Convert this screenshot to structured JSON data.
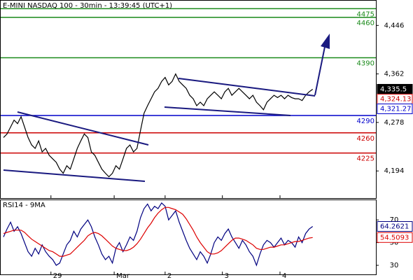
{
  "chart_data": [
    {
      "type": "line",
      "title": "E-MINI NASDAQ 100 - 30min - 13:39:45 (UTC+1)",
      "xlim": [
        0,
        107
      ],
      "x": [
        1,
        2,
        3,
        4,
        5,
        6,
        7,
        8,
        9,
        10,
        11,
        12,
        13,
        14,
        15,
        16,
        17,
        18,
        19,
        20,
        21,
        22,
        23,
        24,
        25,
        26,
        27,
        28,
        29,
        30,
        31,
        32,
        33,
        34,
        35,
        36,
        37,
        38,
        39,
        40,
        41,
        42,
        43,
        44,
        45,
        46,
        47,
        48,
        49,
        50,
        51,
        52,
        53,
        54,
        55,
        56,
        57,
        58,
        59,
        60,
        61,
        62,
        63,
        64,
        65,
        66,
        67,
        68,
        69,
        70,
        71,
        72,
        73,
        74,
        75,
        76,
        77,
        78,
        79,
        80,
        81,
        82,
        83,
        84,
        85,
        86,
        87,
        88,
        89
      ],
      "series": [
        {
          "color": "#000000",
          "values": [
            4252,
            4258,
            4270,
            4282,
            4276,
            4288,
            4270,
            4252,
            4239,
            4233,
            4246,
            4227,
            4233,
            4221,
            4215,
            4209,
            4197,
            4190,
            4203,
            4197,
            4215,
            4233,
            4246,
            4258,
            4252,
            4227,
            4221,
            4209,
            4197,
            4190,
            4184,
            4190,
            4203,
            4197,
            4215,
            4233,
            4239,
            4227,
            4233,
            4264,
            4294,
            4307,
            4319,
            4331,
            4337,
            4349,
            4356,
            4343,
            4349,
            4362,
            4349,
            4343,
            4337,
            4325,
            4319,
            4307,
            4313,
            4307,
            4319,
            4325,
            4331,
            4325,
            4319,
            4331,
            4337,
            4325,
            4331,
            4337,
            4331,
            4325,
            4319,
            4325,
            4313,
            4307,
            4300,
            4313,
            4319,
            4325,
            4321,
            4325,
            4319,
            4325,
            4321,
            4319,
            4319,
            4316,
            4325,
            4331,
            4335.5
          ]
        }
      ],
      "ylim": [
        4147,
        4490
      ],
      "yticks": [
        {
          "value": 4446,
          "label": "4,446"
        },
        {
          "value": 4362,
          "label": "4,362"
        },
        {
          "value": 4278,
          "label": "4,278"
        },
        {
          "value": 4194,
          "label": "4,194"
        }
      ],
      "levels": [
        {
          "value": 4475,
          "color": "#1a8a1a"
        },
        {
          "value": 4460,
          "color": "#1a8a1a"
        },
        {
          "value": 4390,
          "color": "#1a8a1a"
        },
        {
          "value": 4290,
          "color": "#0000cc"
        },
        {
          "value": 4260,
          "color": "#cc0000"
        },
        {
          "value": 4225,
          "color": "#cc0000"
        }
      ],
      "tags": [
        {
          "value": 4335.5,
          "label": "4,335.5",
          "color": "#000000"
        },
        {
          "value": 4324.13,
          "label": "4,324.13",
          "color": "#cc0000"
        },
        {
          "value": 4321.27,
          "label": "4,321.27",
          "color": "#0000cc"
        }
      ]
    },
    {
      "type": "line",
      "title": "RSI14 - 9MA",
      "xlim": [
        0,
        107
      ],
      "x": [
        1,
        2,
        3,
        4,
        5,
        6,
        7,
        8,
        9,
        10,
        11,
        12,
        13,
        14,
        15,
        16,
        17,
        18,
        19,
        20,
        21,
        22,
        23,
        24,
        25,
        26,
        27,
        28,
        29,
        30,
        31,
        32,
        33,
        34,
        35,
        36,
        37,
        38,
        39,
        40,
        41,
        42,
        43,
        44,
        45,
        46,
        47,
        48,
        49,
        50,
        51,
        52,
        53,
        54,
        55,
        56,
        57,
        58,
        59,
        60,
        61,
        62,
        63,
        64,
        65,
        66,
        67,
        68,
        69,
        70,
        71,
        72,
        73,
        74,
        75,
        76,
        77,
        78,
        79,
        80,
        81,
        82,
        83,
        84,
        85,
        86,
        87,
        88,
        89
      ],
      "series": [
        {
          "color": "#000080",
          "values": [
            55,
            62,
            68,
            60,
            64,
            58,
            50,
            42,
            38,
            45,
            40,
            48,
            42,
            38,
            35,
            30,
            32,
            40,
            48,
            52,
            60,
            55,
            62,
            66,
            70,
            64,
            55,
            48,
            40,
            35,
            38,
            32,
            45,
            50,
            42,
            48,
            55,
            52,
            60,
            72,
            80,
            84,
            78,
            82,
            80,
            85,
            82,
            70,
            74,
            78,
            68,
            60,
            52,
            45,
            40,
            35,
            42,
            38,
            32,
            40,
            50,
            55,
            52,
            58,
            62,
            55,
            50,
            45,
            52,
            48,
            42,
            38,
            30,
            40,
            48,
            52,
            50,
            46,
            50,
            54,
            48,
            52,
            50,
            46,
            55,
            50,
            58,
            62,
            64.2621
          ]
        },
        {
          "color": "#dd0000",
          "values": [
            58,
            59,
            60,
            61,
            61,
            61,
            59,
            56,
            53,
            51,
            49,
            47,
            45,
            43,
            42,
            40,
            38,
            38,
            39,
            40,
            43,
            46,
            49,
            52,
            56,
            58,
            59,
            58,
            56,
            53,
            50,
            47,
            45,
            44,
            43,
            43,
            44,
            46,
            49,
            53,
            58,
            63,
            67,
            72,
            76,
            79,
            81,
            81,
            80,
            79,
            77,
            75,
            71,
            66,
            61,
            55,
            50,
            46,
            42,
            40,
            40,
            41,
            43,
            46,
            49,
            52,
            54,
            54,
            53,
            52,
            50,
            48,
            45,
            44,
            44,
            45,
            46,
            46,
            47,
            48,
            48,
            49,
            50,
            51,
            51,
            52,
            53,
            54,
            54.5093
          ]
        }
      ],
      "ylim": [
        22,
        88
      ],
      "yticks": [
        70,
        50,
        30
      ],
      "xticks": [
        {
          "value": 14.5,
          "label": "29"
        },
        {
          "value": 32.5,
          "label": "Mar"
        },
        {
          "value": 47,
          "label": "2"
        },
        {
          "value": 63.3,
          "label": "3"
        },
        {
          "value": 79.7,
          "label": "4"
        }
      ],
      "tags": [
        {
          "value": 64.2621,
          "label": "64.2621",
          "color": "#000080"
        },
        {
          "value": 54.5093,
          "label": "54.5093",
          "color": "#dd0000"
        }
      ]
    }
  ]
}
